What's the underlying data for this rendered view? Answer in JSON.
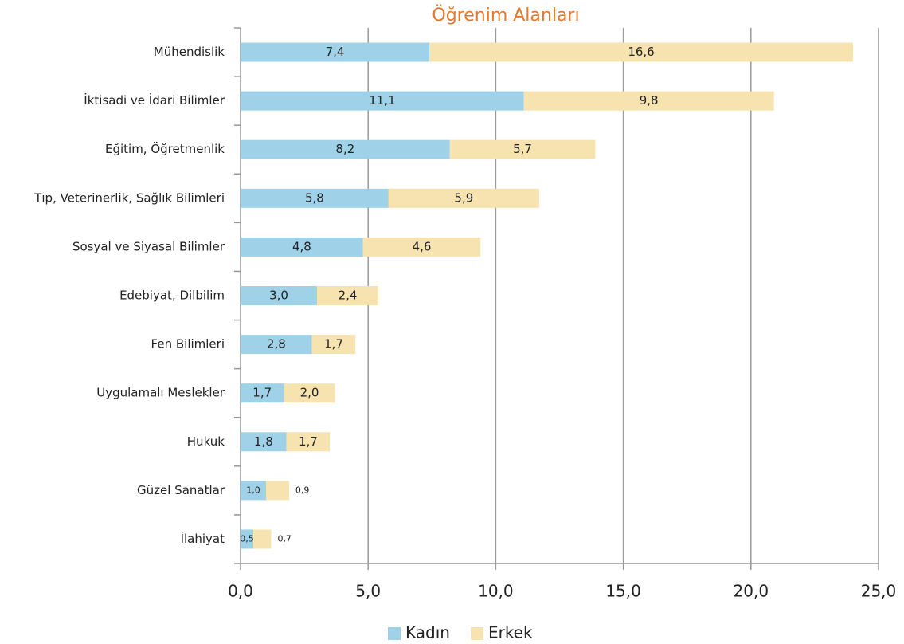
{
  "chart_data": {
    "type": "stacked_barh",
    "title": "Öğrenim Alanları",
    "categories": [
      "Mühendislik",
      "İktisadi ve İdari Bilimler",
      "Eğitim, Öğretmenlik",
      "Tıp, Veterinerlik, Sağlık Bilimleri",
      "Sosyal ve Siyasal Bilimler",
      "Edebiyat, Dilbilim",
      "Fen Bilimleri",
      "Uygulamalı Meslekler",
      "Hukuk",
      "Güzel Sanatlar",
      "İlahiyat"
    ],
    "series": [
      {
        "name": "Kadın",
        "color": "#9fd2e8",
        "values": [
          7.4,
          11.1,
          8.2,
          5.8,
          4.8,
          3.0,
          2.8,
          1.7,
          1.8,
          1.0,
          0.5
        ],
        "value_labels": [
          "7,4",
          "11,1",
          "8,2",
          "5,8",
          "4,8",
          "3,0",
          "2,8",
          "1,7",
          "1,8",
          "1,0",
          "0,5"
        ]
      },
      {
        "name": "Erkek",
        "color": "#f6e3b0",
        "values": [
          16.6,
          9.8,
          5.7,
          5.9,
          4.6,
          2.4,
          1.7,
          2.0,
          1.7,
          0.9,
          0.7
        ],
        "value_labels": [
          "16,6",
          "9,8",
          "5,7",
          "5,9",
          "4,6",
          "2,4",
          "1,7",
          "2,0",
          "1,7",
          "0,9",
          "0,7"
        ]
      }
    ],
    "xlim": [
      0,
      25
    ],
    "xticks": [
      {
        "value": 0,
        "label": "0,0"
      },
      {
        "value": 5,
        "label": "5,0"
      },
      {
        "value": 10,
        "label": "10,0"
      },
      {
        "value": 15,
        "label": "15,0"
      },
      {
        "value": 20,
        "label": "20,0"
      },
      {
        "value": 25,
        "label": "25,0"
      }
    ],
    "grid": true,
    "legend": "bottom",
    "title_color": "#e8782a"
  }
}
